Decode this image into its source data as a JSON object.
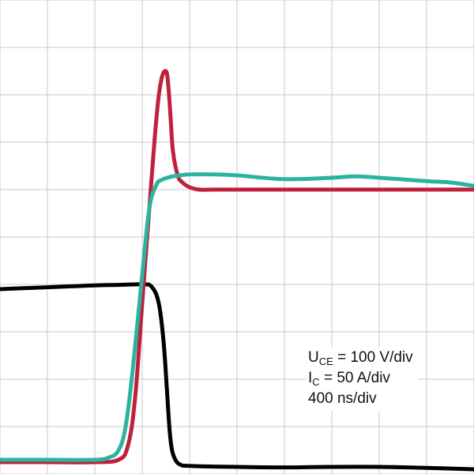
{
  "colors": {
    "background": "#ffffff",
    "grid": "#c8c8c8",
    "uce": "#000000",
    "ic": "#c0203c",
    "vge": "#2cb3a0"
  },
  "legend": {
    "uce_main": "U",
    "uce_sub": "CE",
    "uce_value": " = 100 V/div",
    "ic_main": "I",
    "ic_sub": "C",
    "ic_value": " = 50 A/div",
    "time": "400 ns/div"
  },
  "chart_data": {
    "type": "line",
    "title": "",
    "xlabel": "",
    "ylabel": "",
    "grid": true,
    "divisions_x": 10,
    "divisions_y": 10,
    "xlim": [
      0,
      10
    ],
    "ylim": [
      0,
      10
    ],
    "series": [
      {
        "key": "uce",
        "color": "#000000",
        "x": [
          0,
          0.5,
          1.0,
          1.5,
          2.0,
          2.5,
          3.0,
          3.2,
          3.35,
          3.45,
          3.52,
          3.58,
          3.63,
          3.7,
          3.8,
          4.0,
          5.0,
          6.0,
          7.0,
          8.0,
          9.0,
          10.0
        ],
        "y": [
          3.9,
          3.92,
          3.94,
          3.96,
          3.98,
          3.99,
          4.0,
          3.95,
          3.6,
          2.8,
          1.8,
          0.9,
          0.5,
          0.3,
          0.2,
          0.17,
          0.15,
          0.14,
          0.15,
          0.15,
          0.13,
          0.1
        ]
      },
      {
        "key": "ic",
        "color": "#c0203c",
        "x": [
          0,
          1.0,
          2.0,
          2.5,
          2.7,
          2.85,
          3.0,
          3.15,
          3.3,
          3.4,
          3.5,
          3.55,
          3.6,
          3.65,
          3.75,
          3.85,
          4.0,
          4.2,
          4.5,
          5.0,
          6.0,
          7.0,
          8.0,
          9.0,
          10.0
        ],
        "y": [
          0.25,
          0.25,
          0.25,
          0.3,
          0.6,
          1.6,
          3.6,
          5.6,
          7.5,
          8.3,
          8.5,
          8.2,
          7.5,
          6.8,
          6.3,
          6.15,
          6.05,
          6.0,
          6.0,
          6.0,
          6.0,
          6.0,
          6.0,
          6.0,
          6.0
        ]
      },
      {
        "key": "vge",
        "color": "#2cb3a0",
        "x": [
          0,
          1.0,
          2.0,
          2.3,
          2.5,
          2.65,
          2.8,
          3.0,
          3.15,
          3.3,
          3.4,
          3.6,
          3.8,
          4.0,
          4.5,
          5.0,
          6.0,
          7.0,
          7.5,
          8.0,
          9.0,
          9.5,
          10.0
        ],
        "y": [
          0.3,
          0.3,
          0.3,
          0.35,
          0.5,
          1.0,
          2.2,
          4.2,
          5.6,
          6.1,
          6.2,
          6.27,
          6.3,
          6.32,
          6.32,
          6.3,
          6.22,
          6.25,
          6.28,
          6.25,
          6.18,
          6.15,
          6.08
        ]
      }
    ]
  }
}
